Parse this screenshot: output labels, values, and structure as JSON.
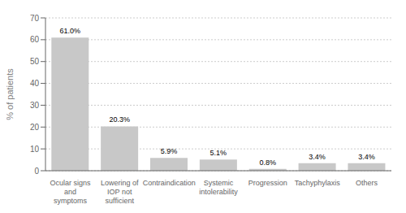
{
  "chart_data": {
    "type": "bar",
    "categories": [
      "Ocular signs\nand\nsymptoms",
      "Lowering of\nIOP not\nsufficient",
      "Contraindication",
      "Systemic\nintolerability",
      "Progression",
      "Tachyphylaxis",
      "Others"
    ],
    "values": [
      61.0,
      20.3,
      5.9,
      5.1,
      0.8,
      3.4,
      3.4
    ],
    "value_labels": [
      "61.0%",
      "20.3%",
      "5.9%",
      "5.1%",
      "0.8%",
      "3.4%",
      "3.4%"
    ],
    "data_labels": true,
    "color": "#c8c8c8",
    "ylabel": "% of  patients",
    "ylim": [
      0,
      70
    ],
    "yticks": [
      0,
      10,
      20,
      30,
      40,
      50,
      60,
      70
    ],
    "grid": true
  }
}
